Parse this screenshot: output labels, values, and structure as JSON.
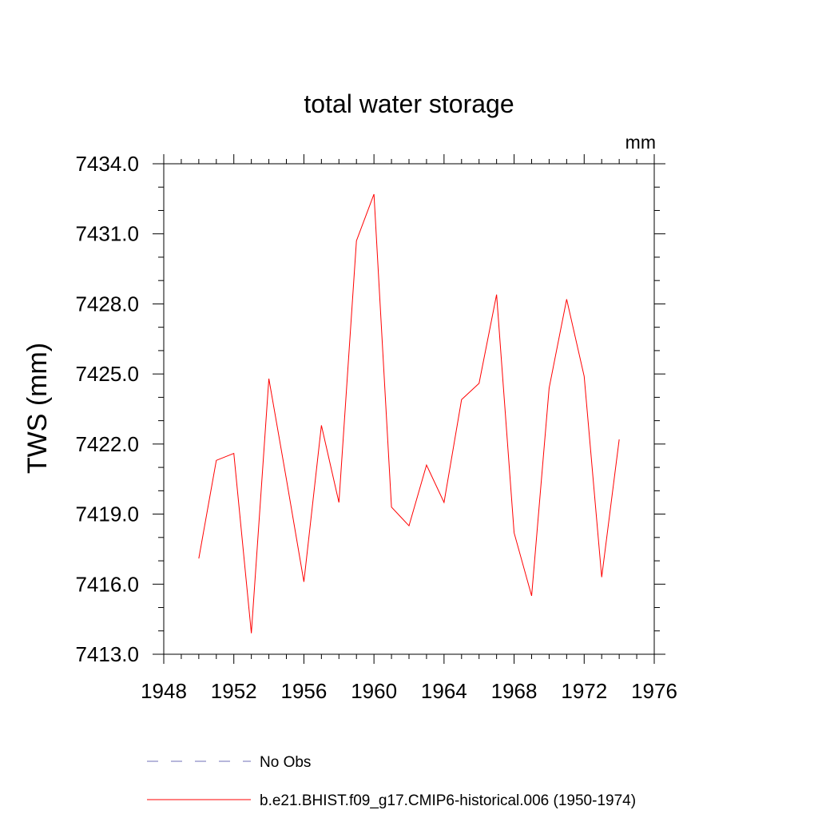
{
  "chart_data": {
    "type": "line",
    "title": "total water storage",
    "units_label": "mm",
    "ylabel": "TWS  (mm)",
    "xlabel": "",
    "xlim": [
      1948,
      1976
    ],
    "ylim": [
      7413.0,
      7434.0
    ],
    "x_ticks": [
      1948,
      1952,
      1956,
      1960,
      1964,
      1968,
      1972,
      1976
    ],
    "x_tick_labels": [
      "1948",
      "1952",
      "1956",
      "1960",
      "1964",
      "1968",
      "1972",
      "1976"
    ],
    "y_ticks": [
      7413.0,
      7416.0,
      7419.0,
      7422.0,
      7425.0,
      7428.0,
      7431.0,
      7434.0
    ],
    "y_tick_labels": [
      "7413.0",
      "7416.0",
      "7419.0",
      "7422.0",
      "7425.0",
      "7428.0",
      "7431.0",
      "7434.0"
    ],
    "x_minor_step": 1,
    "y_minor_step": 1,
    "grid": false,
    "legend_position": "bottom",
    "series": [
      {
        "name": "b.e21.BHIST.f09_g17.CMIP6-historical.006 (1950-1974)",
        "color": "#ff0000",
        "style": "solid",
        "x": [
          1950,
          1951,
          1952,
          1953,
          1954,
          1955,
          1956,
          1957,
          1958,
          1959,
          1960,
          1961,
          1962,
          1963,
          1964,
          1965,
          1966,
          1967,
          1968,
          1969,
          1970,
          1971,
          1972,
          1973,
          1974
        ],
        "values": [
          7417.1,
          7421.3,
          7421.6,
          7413.9,
          7424.8,
          7420.5,
          7416.1,
          7422.8,
          7419.5,
          7430.7,
          7432.7,
          7419.3,
          7418.5,
          7421.1,
          7419.5,
          7423.9,
          7424.6,
          7428.4,
          7418.2,
          7415.5,
          7424.4,
          7428.2,
          7424.9,
          7416.3,
          7422.2
        ]
      }
    ],
    "legend": [
      {
        "label": "No Obs",
        "color": "#6f6fb7",
        "style": "dashed"
      },
      {
        "label": "b.e21.BHIST.f09_g17.CMIP6-historical.006 (1950-1974)",
        "color": "#ff0000",
        "style": "solid"
      }
    ]
  }
}
